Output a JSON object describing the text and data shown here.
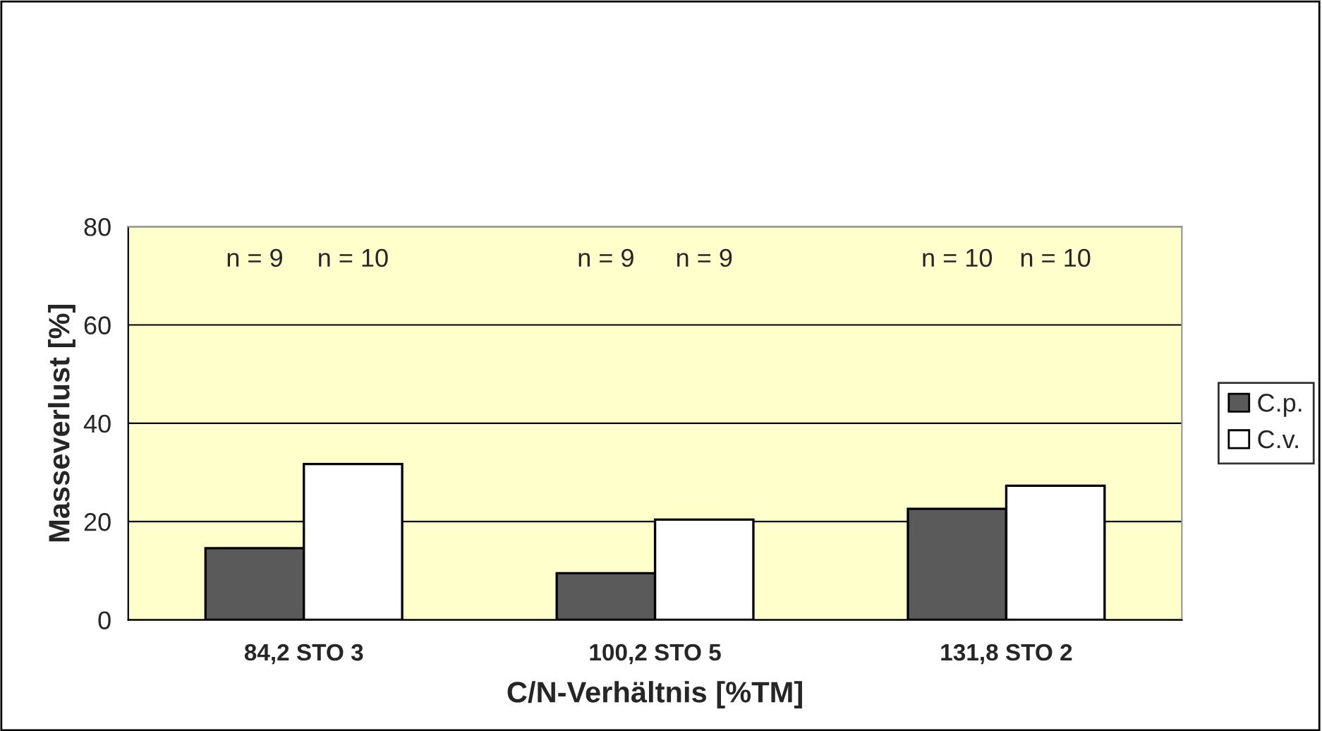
{
  "chart_data": {
    "type": "bar",
    "xlabel": "C/N-Verhältnis [%TM]",
    "ylabel": "Masseverlust [%]",
    "categories": [
      "84,2 STO 3",
      "100,2 STO 5",
      "131,8 STO 2"
    ],
    "series": [
      {
        "name": "C.p.",
        "color": "#5a5a5a",
        "values": [
          14.6,
          9.5,
          22.6
        ]
      },
      {
        "name": "C.v.",
        "color": "#ffffff",
        "values": [
          31.7,
          20.4,
          27.3
        ]
      }
    ],
    "annotations": [
      "n = 9",
      "n = 10",
      "n = 9",
      "n = 9",
      "n = 10",
      "n = 10"
    ],
    "ylim": [
      0,
      80
    ],
    "yticks": [
      0,
      20,
      40,
      60,
      80
    ],
    "grid": "y",
    "legend": "right"
  }
}
